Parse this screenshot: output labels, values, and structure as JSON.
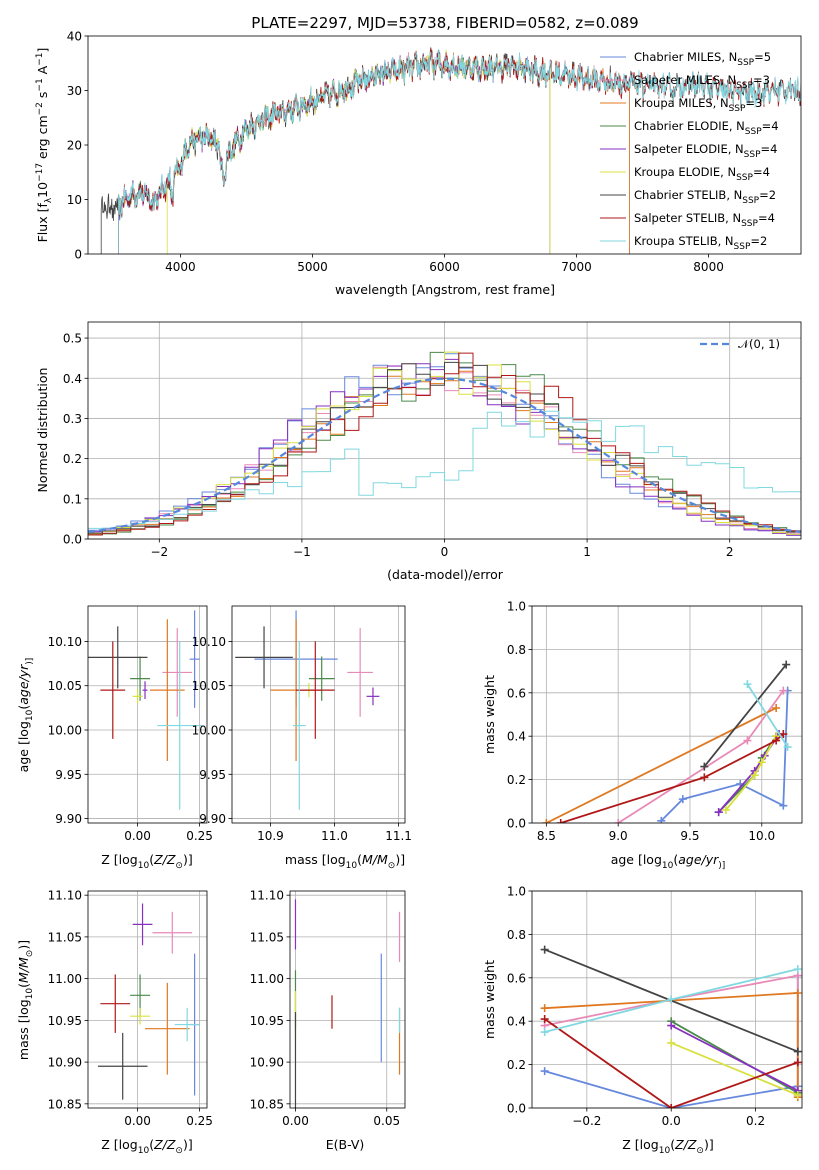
{
  "chart_data": [
    {
      "type": "line",
      "title": "PLATE=2297, MJD=53738, FIBERID=0582, z=0.089",
      "xlabel": "wavelength [Angstrom, rest frame]",
      "ylabel": "Flux [f$_\\lambda$10$^{-17}$ erg cm$^{-2}$ s$^{-1}$ A$^{-1}$]",
      "ylabel_parts": [
        "Flux [f",
        "λ",
        "10",
        "−17",
        " erg cm",
        "−2",
        " s",
        "−1",
        " A",
        "−1",
        "]"
      ],
      "xlim": [
        3300,
        8700
      ],
      "ylim": [
        0,
        40
      ],
      "xticks": [
        "4000",
        "5000",
        "6000",
        "7000",
        "8000"
      ],
      "yticks": [
        "0",
        "10",
        "20",
        "30",
        "40"
      ],
      "legend_position": "right",
      "spectrum_shape": {
        "x": [
          3400,
          3530,
          3600,
          3700,
          3800,
          3900,
          3950,
          4000,
          4050,
          4150,
          4250,
          4350,
          4500,
          4700,
          4900,
          5100,
          5300,
          5500,
          5700,
          5900,
          6100,
          6300,
          6500,
          6700,
          6900,
          7100,
          7300,
          7500,
          7700,
          7900,
          8100,
          8300,
          8500,
          8700
        ],
        "y": [
          null,
          8.5,
          10.5,
          11.5,
          9.5,
          13,
          14,
          16,
          20,
          21.5,
          21,
          18,
          23,
          25.5,
          27,
          29,
          31,
          33,
          34,
          35,
          34.5,
          34,
          34.5,
          33.5,
          33,
          32,
          31.5,
          31,
          30.5,
          31,
          30,
          29.5,
          30,
          30
        ]
      },
      "series": [
        {
          "name": "Chabrier MILES, N",
          "subscript": "SSP",
          "suffix": "=5",
          "color": "#6688dd",
          "x_start": 3530,
          "x_end": 7400
        },
        {
          "name": "Salpeter MILES, N",
          "subscript": "SSP",
          "suffix": "=3",
          "color": "#e88ab8",
          "x_start": 3530,
          "x_end": 7400
        },
        {
          "name": "Kroupa MILES, N",
          "subscript": "SSP",
          "suffix": "=3",
          "color": "#e07820",
          "x_start": 3530,
          "x_end": 7400
        },
        {
          "name": "Chabrier ELODIE, N",
          "subscript": "SSP",
          "suffix": "=4",
          "color": "#4a8a4a",
          "x_start": 3530,
          "x_end": 6800
        },
        {
          "name": "Salpeter ELODIE, N",
          "subscript": "SSP",
          "suffix": "=4",
          "color": "#8830c0",
          "x_start": 3530,
          "x_end": 6800
        },
        {
          "name": "Kroupa ELODIE, N",
          "subscript": "SSP",
          "suffix": "=4",
          "color": "#d8e040",
          "x_start": 3900,
          "x_end": 6800
        },
        {
          "name": "Chabrier STELIB, N",
          "subscript": "SSP",
          "suffix": "=2",
          "color": "#444444",
          "x_start": 3400,
          "x_end": 8700
        },
        {
          "name": "Salpeter STELIB, N",
          "subscript": "SSP",
          "suffix": "=4",
          "color": "#b01818",
          "x_start": 3530,
          "x_end": 8700
        },
        {
          "name": "Kroupa STELIB, N",
          "subscript": "SSP",
          "suffix": "=2",
          "color": "#80d8e0",
          "x_start": 3530,
          "x_end": 8700
        }
      ]
    },
    {
      "type": "line",
      "xlabel": "(data-model)/error",
      "ylabel": "Normed distribution",
      "xlim": [
        -2.5,
        2.5
      ],
      "ylim": [
        0,
        0.54
      ],
      "xticks": [
        -2,
        -1,
        0,
        1,
        2
      ],
      "xtick_labels": [
        "−2",
        "−1",
        "0",
        "1",
        "2"
      ],
      "yticks": [
        0,
        0.1,
        0.2,
        0.3,
        0.4,
        0.5
      ],
      "ytick_labels": [
        "0.0",
        "0.1",
        "0.2",
        "0.3",
        "0.4",
        "0.5"
      ],
      "grid": true,
      "legend_label": "𝒩(0, 1)",
      "reference": {
        "name": "𝒩(0, 1)",
        "color": "#5588dd",
        "style": "dashed"
      },
      "bin_width": 0.1,
      "bin_start": -2.5
    },
    {
      "type": "scatter",
      "xlabel_parts": [
        "Z [log",
        "10",
        "(",
        "Z/Z",
        "⊙",
        ")]"
      ],
      "ylabel_parts": [
        "age  [log",
        "10",
        "(",
        "age/yr",
        ")]"
      ],
      "xlim": [
        -0.2,
        0.28
      ],
      "ylim": [
        9.895,
        10.14
      ],
      "xticks": [
        0,
        0.25
      ],
      "xtick_labels": [
        "0.00",
        "0.25"
      ],
      "yticks": [
        9.9,
        9.95,
        10.0,
        10.05,
        10.1
      ],
      "ytick_labels": [
        "9.90",
        "9.95",
        "10.00",
        "10.05",
        "10.10"
      ],
      "grid": true,
      "points": [
        {
          "x": 0.23,
          "y": 10.08,
          "xerr": 0.02,
          "yerr": 0.055,
          "color": "#6688dd"
        },
        {
          "x": 0.16,
          "y": 10.065,
          "xerr": 0.06,
          "yerr": 0.05,
          "color": "#e88ab8"
        },
        {
          "x": 0.12,
          "y": 10.045,
          "xerr": 0.07,
          "yerr": 0.08,
          "color": "#e07820"
        },
        {
          "x": 0.01,
          "y": 10.058,
          "xerr": 0.04,
          "yerr": 0.025,
          "color": "#4a8a4a"
        },
        {
          "x": 0.03,
          "y": 10.045,
          "xerr": 0.01,
          "yerr": 0.01,
          "color": "#8830c0"
        },
        {
          "x": 0.0,
          "y": 10.038,
          "xerr": 0.02,
          "yerr": 0.008,
          "color": "#d8e040"
        },
        {
          "x": -0.08,
          "y": 10.082,
          "xerr": 0.12,
          "yerr": 0.035,
          "color": "#444444"
        },
        {
          "x": -0.1,
          "y": 10.045,
          "xerr": 0.05,
          "yerr": 0.055,
          "color": "#b01818"
        },
        {
          "x": 0.17,
          "y": 10.005,
          "xerr": 0.09,
          "yerr": 0.095,
          "color": "#80d8e0"
        }
      ]
    },
    {
      "type": "scatter",
      "xlabel_parts": [
        "mass [log",
        "10",
        "(",
        "M/M",
        "⊙",
        ")]"
      ],
      "xlim": [
        10.84,
        11.11
      ],
      "ylim": [
        9.895,
        10.14
      ],
      "xticks": [
        10.9,
        11.0,
        11.1
      ],
      "xtick_labels": [
        "10.9",
        "11.0",
        "11.1"
      ],
      "yticks": [
        9.9,
        9.95,
        10.0,
        10.05,
        10.1
      ],
      "ytick_labels": [
        "9.90",
        "9.95",
        "10.00",
        "10.05",
        "10.10"
      ],
      "grid": true,
      "points": [
        {
          "x": 10.94,
          "y": 10.08,
          "xerr": 0.065,
          "yerr": 0.055,
          "color": "#6688dd"
        },
        {
          "x": 11.04,
          "y": 10.065,
          "xerr": 0.02,
          "yerr": 0.05,
          "color": "#e88ab8"
        },
        {
          "x": 10.94,
          "y": 10.045,
          "xerr": 0.04,
          "yerr": 0.08,
          "color": "#e07820"
        },
        {
          "x": 10.98,
          "y": 10.058,
          "xerr": 0.02,
          "yerr": 0.025,
          "color": "#4a8a4a"
        },
        {
          "x": 11.06,
          "y": 10.038,
          "xerr": 0.01,
          "yerr": 0.01,
          "color": "#8830c0"
        },
        {
          "x": 10.96,
          "y": 10.045,
          "xerr": 0.01,
          "yerr": 0.008,
          "color": "#d8e040"
        },
        {
          "x": 10.89,
          "y": 10.082,
          "xerr": 0.045,
          "yerr": 0.035,
          "color": "#444444"
        },
        {
          "x": 10.97,
          "y": 10.045,
          "xerr": 0.03,
          "yerr": 0.055,
          "color": "#b01818"
        },
        {
          "x": 10.945,
          "y": 10.005,
          "xerr": 0.01,
          "yerr": 0.095,
          "color": "#80d8e0"
        }
      ]
    },
    {
      "type": "line",
      "xlabel_parts": [
        "age  [log",
        "10",
        "(",
        "age/yr",
        ")]"
      ],
      "ylabel": "mass weight",
      "xlim": [
        8.4,
        10.28
      ],
      "ylim": [
        0,
        1.0
      ],
      "xticks": [
        8.5,
        9.0,
        9.5,
        10.0
      ],
      "xtick_labels": [
        "8.5",
        "9.0",
        "9.5",
        "10.0"
      ],
      "yticks": [
        0,
        0.2,
        0.4,
        0.6,
        0.8,
        1.0
      ],
      "ytick_labels": [
        "0.0",
        "0.2",
        "0.4",
        "0.6",
        "0.8",
        "1.0"
      ],
      "grid": true,
      "series": [
        {
          "color": "#6688dd",
          "points": [
            [
              9.3,
              0.01
            ],
            [
              9.45,
              0.11
            ],
            [
              9.85,
              0.18
            ],
            [
              10.15,
              0.08
            ],
            [
              10.18,
              0.61
            ]
          ]
        },
        {
          "color": "#e88ab8",
          "points": [
            [
              9.0,
              0.0
            ],
            [
              9.9,
              0.38
            ],
            [
              10.15,
              0.61
            ]
          ]
        },
        {
          "color": "#e07820",
          "points": [
            [
              8.5,
              0.0
            ],
            [
              10.1,
              0.53
            ]
          ]
        },
        {
          "color": "#4a8a4a",
          "points": [
            [
              9.7,
              0.05
            ],
            [
              9.95,
              0.22
            ],
            [
              10.0,
              0.3
            ],
            [
              10.1,
              0.4
            ]
          ]
        },
        {
          "color": "#8830c0",
          "points": [
            [
              9.7,
              0.05
            ],
            [
              9.95,
              0.24
            ],
            [
              10.02,
              0.31
            ],
            [
              10.12,
              0.41
            ]
          ]
        },
        {
          "color": "#d8e040",
          "points": [
            [
              9.75,
              0.06
            ],
            [
              9.95,
              0.22
            ],
            [
              10.0,
              0.28
            ],
            [
              10.1,
              0.4
            ]
          ]
        },
        {
          "color": "#444444",
          "points": [
            [
              9.6,
              0.26
            ],
            [
              10.17,
              0.73
            ]
          ]
        },
        {
          "color": "#b01818",
          "points": [
            [
              8.6,
              0.0
            ],
            [
              9.6,
              0.21
            ],
            [
              10.1,
              0.38
            ],
            [
              10.15,
              0.41
            ]
          ]
        },
        {
          "color": "#80d8e0",
          "points": [
            [
              9.9,
              0.64
            ],
            [
              10.18,
              0.35
            ]
          ]
        }
      ]
    },
    {
      "type": "scatter",
      "xlabel_parts": [
        "Z [log",
        "10",
        "(",
        "Z/Z",
        "⊙",
        ")]"
      ],
      "ylabel_parts": [
        "mass [log",
        "10",
        "(",
        "M/M",
        "⊙",
        ")]"
      ],
      "xlim": [
        -0.2,
        0.28
      ],
      "ylim": [
        10.845,
        11.105
      ],
      "xticks": [
        0,
        0.25
      ],
      "xtick_labels": [
        "0.00",
        "0.25"
      ],
      "yticks": [
        10.85,
        10.9,
        10.95,
        11.0,
        11.05,
        11.1
      ],
      "ytick_labels": [
        "10.85",
        "10.90",
        "10.95",
        "11.00",
        "11.05",
        "11.10"
      ],
      "grid": true,
      "points": [
        {
          "x": 0.23,
          "y": 10.945,
          "xerr": 0.02,
          "yerr": 0.085,
          "color": "#6688dd"
        },
        {
          "x": 0.14,
          "y": 11.055,
          "xerr": 0.08,
          "yerr": 0.025,
          "color": "#e88ab8"
        },
        {
          "x": 0.12,
          "y": 10.94,
          "xerr": 0.09,
          "yerr": 0.055,
          "color": "#e07820"
        },
        {
          "x": 0.01,
          "y": 10.98,
          "xerr": 0.04,
          "yerr": 0.025,
          "color": "#4a8a4a"
        },
        {
          "x": 0.02,
          "y": 11.065,
          "xerr": 0.04,
          "yerr": 0.025,
          "color": "#8830c0"
        },
        {
          "x": 0.01,
          "y": 10.955,
          "xerr": 0.04,
          "yerr": 0.01,
          "color": "#d8e040"
        },
        {
          "x": -0.06,
          "y": 10.895,
          "xerr": 0.1,
          "yerr": 0.04,
          "color": "#444444"
        },
        {
          "x": -0.09,
          "y": 10.97,
          "xerr": 0.06,
          "yerr": 0.035,
          "color": "#b01818"
        },
        {
          "x": 0.2,
          "y": 10.945,
          "xerr": 0.05,
          "yerr": 0.02,
          "color": "#80d8e0"
        }
      ]
    },
    {
      "type": "scatter",
      "xlabel": "E(B-V)",
      "xlim": [
        -0.003,
        0.06
      ],
      "ylim": [
        10.845,
        11.105
      ],
      "xticks": [
        0,
        0.05
      ],
      "xtick_labels": [
        "0.00",
        "0.05"
      ],
      "yticks": [
        10.85,
        10.9,
        10.95,
        11.0,
        11.05,
        11.1
      ],
      "ytick_labels": [
        "10.85",
        "10.90",
        "10.95",
        "11.00",
        "11.05",
        "11.10"
      ],
      "grid": true,
      "points": [
        {
          "x": 0.0,
          "y": 11.065,
          "yerr": 0.03,
          "color": "#8830c0"
        },
        {
          "x": 0.0,
          "y": 10.975,
          "yerr": 0.035,
          "color": "#4a8a4a"
        },
        {
          "x": 0.0,
          "y": 10.955,
          "yerr": 0.03,
          "color": "#d8e040"
        },
        {
          "x": 0.0,
          "y": 10.9,
          "yerr": 0.06,
          "color": "#444444"
        },
        {
          "x": 0.02,
          "y": 10.96,
          "yerr": 0.02,
          "color": "#b01818"
        },
        {
          "x": 0.047,
          "y": 10.965,
          "yerr": 0.065,
          "color": "#6688dd"
        },
        {
          "x": 0.057,
          "y": 11.05,
          "yerr": 0.03,
          "color": "#e88ab8"
        },
        {
          "x": 0.057,
          "y": 10.925,
          "yerr": 0.04,
          "color": "#e07820"
        },
        {
          "x": 0.057,
          "y": 10.95,
          "yerr": 0.015,
          "color": "#80d8e0"
        }
      ]
    },
    {
      "type": "line",
      "xlabel_parts": [
        "Z [log",
        "10",
        "(",
        "Z/Z",
        "⊙",
        ")]"
      ],
      "ylabel": "mass weight",
      "xlim": [
        -0.33,
        0.31
      ],
      "ylim": [
        0,
        1.0
      ],
      "xticks": [
        -0.2,
        0.0,
        0.2
      ],
      "xtick_labels": [
        "−0.2",
        "0.0",
        "0.2"
      ],
      "yticks": [
        0,
        0.2,
        0.4,
        0.6,
        0.8,
        1.0
      ],
      "ytick_labels": [
        "0.0",
        "0.2",
        "0.4",
        "0.6",
        "0.8",
        "1.0"
      ],
      "grid": true,
      "series": [
        {
          "color": "#6688dd",
          "points": [
            [
              -0.3,
              0.17
            ],
            [
              0.0,
              0.0
            ],
            [
              0.3,
              0.1
            ],
            [
              0.3,
              0.61
            ]
          ]
        },
        {
          "color": "#e88ab8",
          "points": [
            [
              -0.3,
              0.38
            ],
            [
              0.0,
              0.5
            ],
            [
              0.3,
              0.61
            ],
            [
              0.3,
              0.06
            ]
          ]
        },
        {
          "color": "#e07820",
          "points": [
            [
              -0.3,
              0.46
            ],
            [
              0.3,
              0.53
            ],
            [
              0.3,
              0.05
            ]
          ]
        },
        {
          "color": "#4a8a4a",
          "points": [
            [
              0.0,
              0.4
            ],
            [
              0.3,
              0.07
            ]
          ]
        },
        {
          "color": "#8830c0",
          "points": [
            [
              0.0,
              0.38
            ],
            [
              0.3,
              0.08
            ]
          ]
        },
        {
          "color": "#d8e040",
          "points": [
            [
              0.0,
              0.3
            ],
            [
              0.3,
              0.06
            ]
          ]
        },
        {
          "color": "#444444",
          "points": [
            [
              -0.3,
              0.73
            ],
            [
              0.3,
              0.26
            ]
          ]
        },
        {
          "color": "#b01818",
          "points": [
            [
              -0.3,
              0.41
            ],
            [
              0.0,
              0.0
            ],
            [
              0.3,
              0.21
            ]
          ]
        },
        {
          "color": "#80d8e0",
          "points": [
            [
              -0.3,
              0.35
            ],
            [
              0.0,
              0.5
            ],
            [
              0.3,
              0.64
            ]
          ]
        }
      ]
    }
  ]
}
